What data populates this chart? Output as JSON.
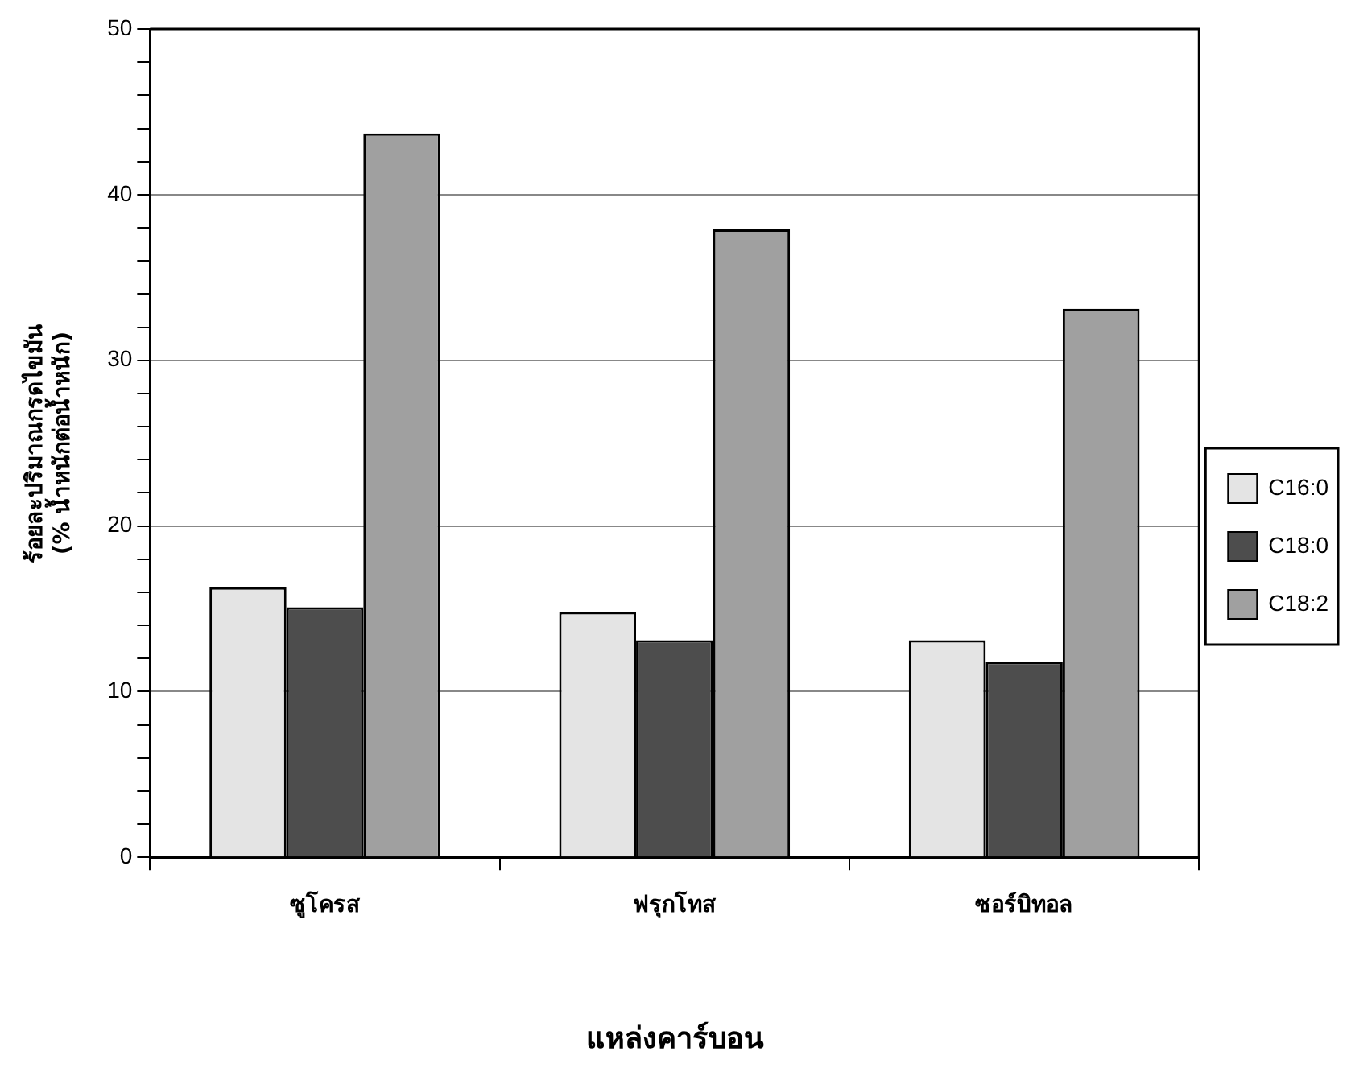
{
  "chart_data": {
    "type": "bar",
    "xlabel": "แหล่งคาร์บอน",
    "ylabel": "ร้อยละปริมาณกรดไขมัน\n(% น้ำหนักต่อน้ำหนัก)",
    "categories": [
      "ซูโครส",
      "ฟรุกโทส",
      "ซอร์บิทอล"
    ],
    "series": [
      {
        "name": "C16:0",
        "color": "#e4e4e4",
        "values": [
          16.3,
          14.8,
          13.1
        ]
      },
      {
        "name": "C18:0",
        "color": "#4d4d4d",
        "values": [
          15.1,
          13.1,
          11.8
        ]
      },
      {
        "name": "C18:2",
        "color": "#a0a0a0",
        "values": [
          43.7,
          37.9,
          33.1
        ]
      }
    ],
    "ylim": [
      0,
      50
    ],
    "yticks": [
      0,
      {
        "value": 2,
        "label": null
      },
      {
        "value": 4,
        "label": null
      },
      {
        "value": 6,
        "label": null
      },
      {
        "value": 8,
        "label": null
      },
      10,
      {
        "value": 12,
        "label": null
      },
      {
        "value": 14,
        "label": null
      },
      {
        "value": 16,
        "label": null
      },
      {
        "value": 18,
        "label": null
      },
      20,
      {
        "value": 22,
        "label": null
      },
      {
        "value": 24,
        "label": null
      },
      {
        "value": 26,
        "label": null
      },
      {
        "value": 28,
        "label": null
      },
      30,
      {
        "value": 32,
        "label": null
      },
      {
        "value": 34,
        "label": null
      },
      {
        "value": 36,
        "label": null
      },
      {
        "value": 38,
        "label": null
      },
      40,
      {
        "value": 42,
        "label": null
      },
      {
        "value": 44,
        "label": null
      },
      {
        "value": 46,
        "label": null
      },
      {
        "value": 48,
        "label": null
      },
      50
    ],
    "grid": "y",
    "legend": "right"
  }
}
